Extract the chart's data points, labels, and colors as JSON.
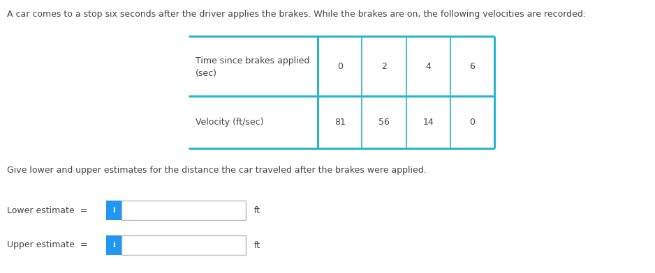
{
  "intro_text": "A car comes to a stop six seconds after the driver applies the brakes. While the brakes are on, the following velocities are recorded:",
  "row1_label_line1": "Time since brakes applied",
  "row1_label_line2": "(sec)",
  "row2_label": "Velocity (ft/sec)",
  "time_values": [
    "0",
    "2",
    "4",
    "6"
  ],
  "velocity_values": [
    "81",
    "56",
    "14",
    "0"
  ],
  "question_text": "Give lower and upper estimates for the distance the car traveled after the brakes were applied.",
  "lower_label": "Lower estimate  =",
  "upper_label": "Upper estimate  =",
  "ft_label": "ft",
  "table_border_color": "#29B6C8",
  "input_box_border_color": "#bbbbbb",
  "info_button_color": "#2196F3",
  "info_button_text": "i",
  "text_color": "#444444",
  "background_color": "#ffffff",
  "font_size_intro": 9.0,
  "font_size_table": 9.0,
  "font_size_question": 9.0,
  "font_size_label": 9.0,
  "font_size_btn": 8.0
}
